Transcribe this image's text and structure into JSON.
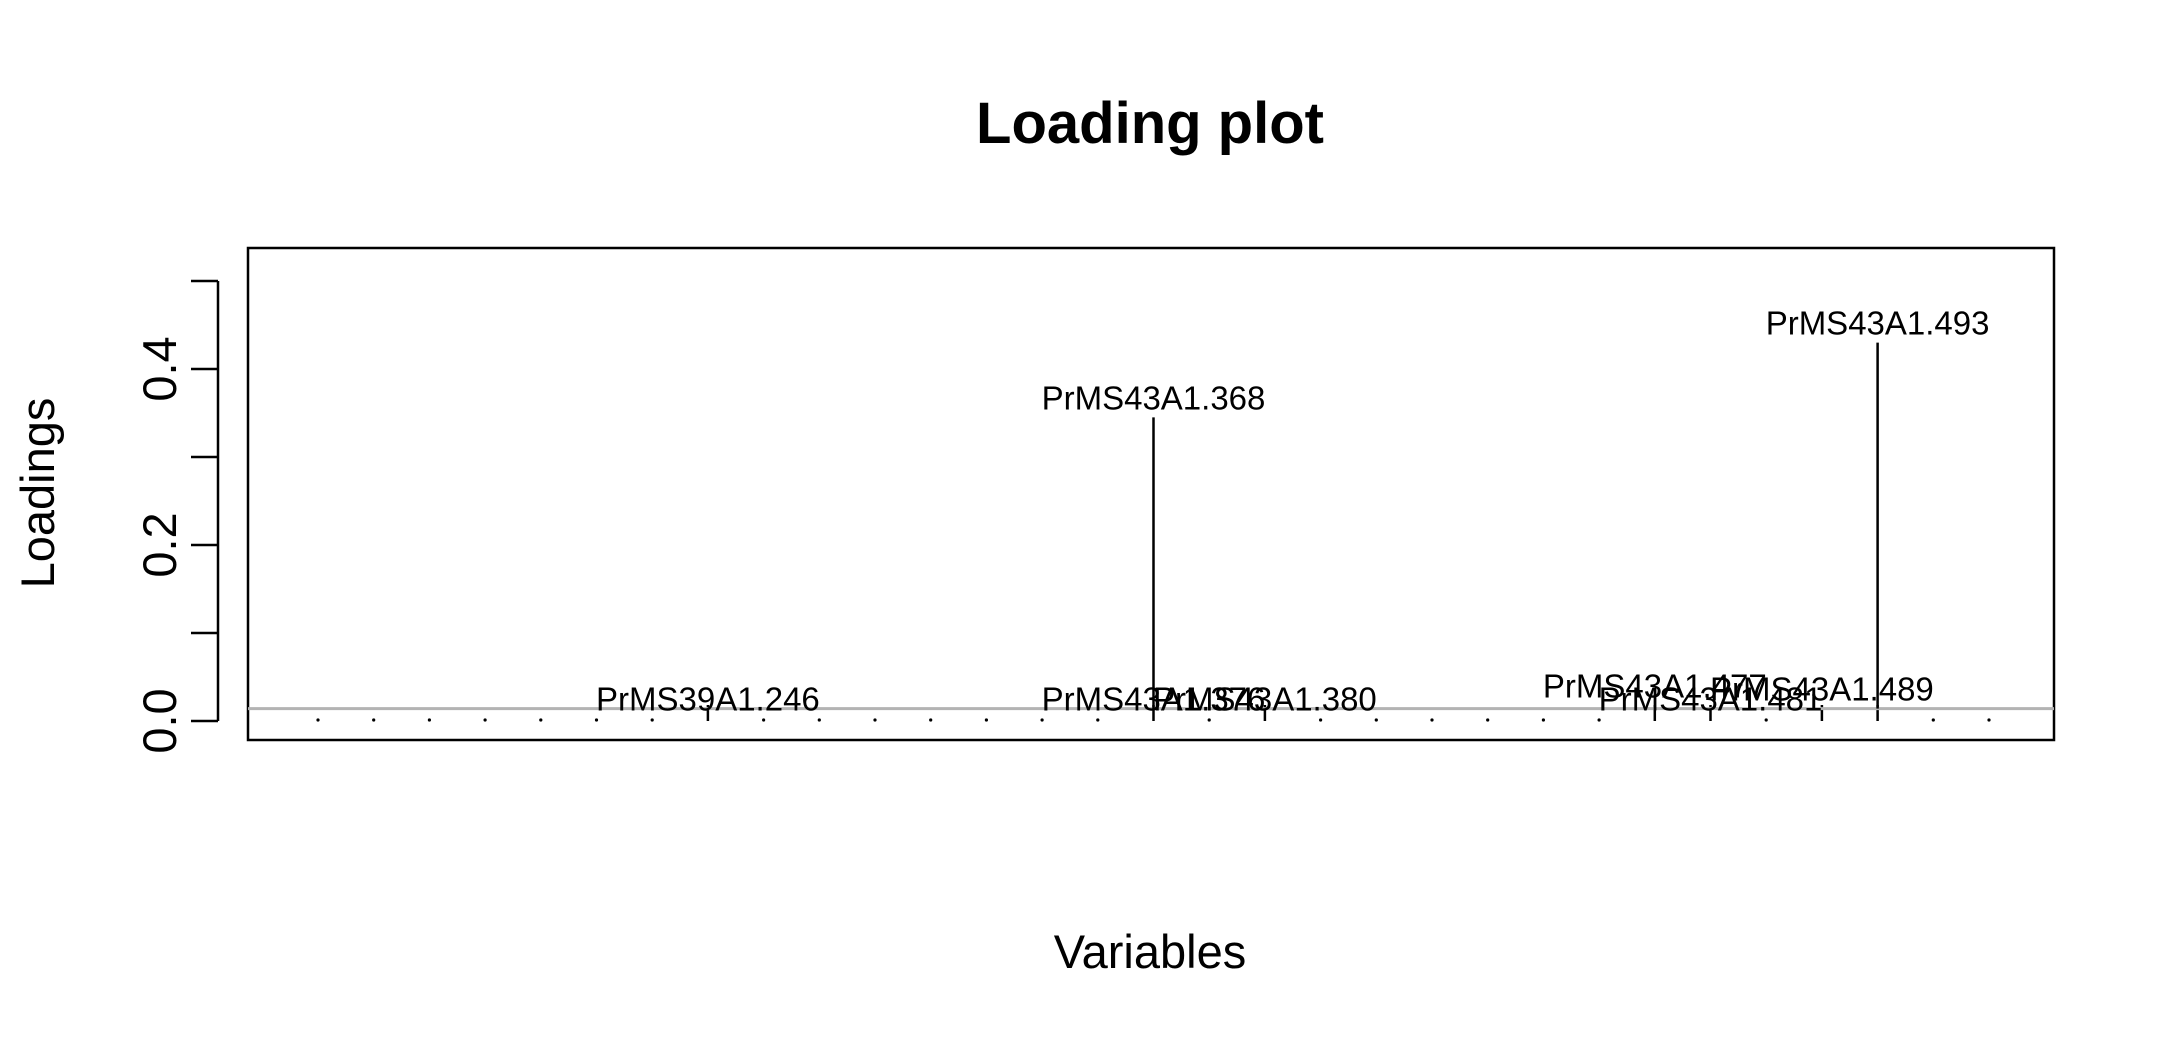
{
  "chart_data": {
    "type": "bar",
    "title": "Loading plot",
    "xlabel": "Variables",
    "ylabel": "Loadings",
    "ylim": [
      -0.02,
      0.52
    ],
    "yticks": [
      0.0,
      0.1,
      0.2,
      0.3,
      0.4,
      0.5
    ],
    "ytick_labels": [
      "0.0",
      "",
      "0.2",
      "",
      "0.4",
      ""
    ],
    "baseline": 0.014,
    "n_variables": 31,
    "points": [
      {
        "index": 7,
        "value": 0.014,
        "label": "PrMS39A1.246"
      },
      {
        "index": 15,
        "value": 0.345,
        "label": "PrMS43A1.368"
      },
      {
        "index": 15,
        "value": 0.014,
        "label": "PrMS43A1.376"
      },
      {
        "index": 17,
        "value": 0.014,
        "label": "PrMS43A1.380"
      },
      {
        "index": 24,
        "value": 0.014,
        "label": "PrMS43A1.477"
      },
      {
        "index": 25,
        "value": 0.014,
        "label": "PrMS43A1.481"
      },
      {
        "index": 27,
        "value": 0.014,
        "label": "PrMS43A1.489"
      },
      {
        "index": 28,
        "value": 0.43,
        "label": "PrMS43A1.493"
      }
    ],
    "colors": {
      "lines": "#000000",
      "baseline": "#b3b3b3",
      "frame": "#000000"
    }
  }
}
